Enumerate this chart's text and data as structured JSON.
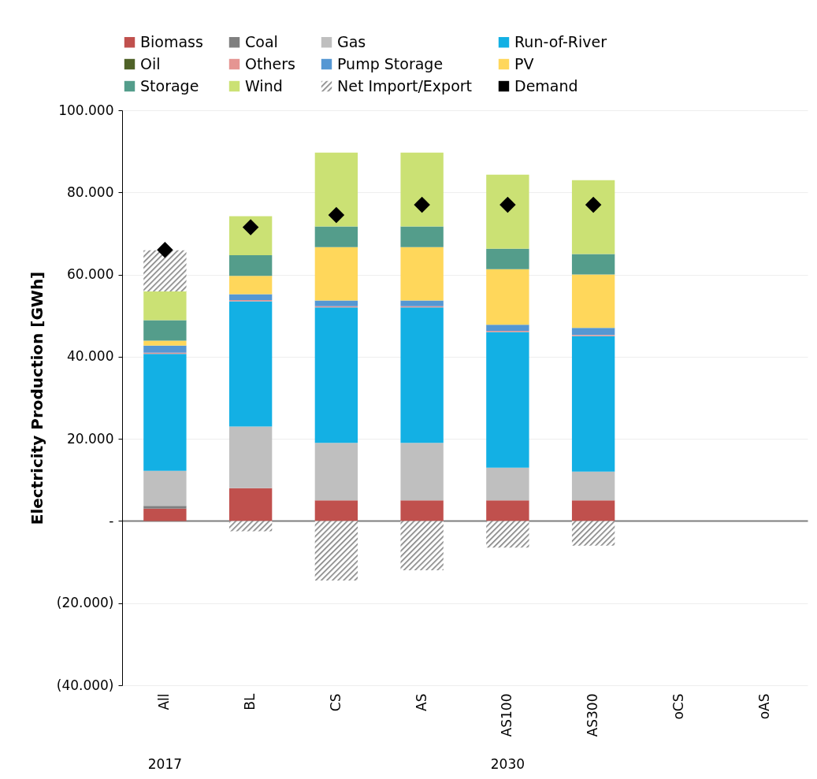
{
  "chart_data": {
    "type": "bar",
    "stacked": true,
    "ylabel": "Electricity Production [GWh]",
    "categories": [
      "All",
      "BL",
      "CS",
      "AS",
      "AS100",
      "AS300",
      "oCS",
      "oAS"
    ],
    "series": [
      {
        "name": "Biomass",
        "color": "#c0504d",
        "values": [
          3000,
          8000,
          5000,
          5000,
          5000,
          5000,
          null,
          null
        ]
      },
      {
        "name": "Coal",
        "color": "#7f7f7f",
        "values": [
          700,
          null,
          null,
          null,
          null,
          null,
          null,
          null
        ]
      },
      {
        "name": "Gas",
        "color": "#bfbfbf",
        "values": [
          8500,
          15000,
          14000,
          14000,
          8000,
          7000,
          null,
          null
        ]
      },
      {
        "name": "Run-of-River",
        "color": "#13b0e4",
        "values": [
          28500,
          30500,
          33000,
          33000,
          33000,
          33000,
          null,
          null
        ]
      },
      {
        "name": "Oil",
        "color": "#4f6228",
        "values": [
          null,
          null,
          null,
          null,
          null,
          null,
          null,
          null
        ]
      },
      {
        "name": "Others",
        "color": "#e59592",
        "values": [
          300,
          300,
          300,
          300,
          300,
          300,
          null,
          null
        ]
      },
      {
        "name": "Pump Storage",
        "color": "#5597d3",
        "values": [
          1700,
          1400,
          1400,
          1400,
          1500,
          1700,
          null,
          null
        ]
      },
      {
        "name": "PV",
        "color": "#ffd75b",
        "values": [
          1200,
          4500,
          13000,
          13000,
          13500,
          13000,
          null,
          null
        ]
      },
      {
        "name": "Storage",
        "color": "#549d8b",
        "values": [
          5000,
          5000,
          5000,
          5000,
          5000,
          5000,
          null,
          null
        ]
      },
      {
        "name": "Wind",
        "color": "#cbe174",
        "values": [
          7000,
          9500,
          18000,
          18000,
          18000,
          18000,
          null,
          null
        ]
      },
      {
        "name": "Net Import/Export",
        "color": "#808080",
        "values": [
          10000,
          -2500,
          -14500,
          -12000,
          -6500,
          -6000,
          null,
          null
        ]
      },
      {
        "name": "Demand",
        "type": "scatter",
        "marker": "diamond",
        "color": "#000000",
        "values": [
          66000,
          71500,
          74500,
          77000,
          77000,
          77000,
          null,
          null
        ]
      }
    ],
    "ylim": [
      -40000,
      100000
    ],
    "yticks": [
      {
        "value": -40000,
        "label": "(40.000)"
      },
      {
        "value": -20000,
        "label": "(20.000)"
      },
      {
        "value": 0,
        "label": "-"
      },
      {
        "value": 20000,
        "label": "20.000"
      },
      {
        "value": 40000,
        "label": "40.000"
      },
      {
        "value": 60000,
        "label": "60.000"
      },
      {
        "value": 80000,
        "label": "80.000"
      },
      {
        "value": 100000,
        "label": "100.000"
      }
    ],
    "grid": "y",
    "legend": "top",
    "annotations": [
      "2017",
      "2030"
    ]
  }
}
